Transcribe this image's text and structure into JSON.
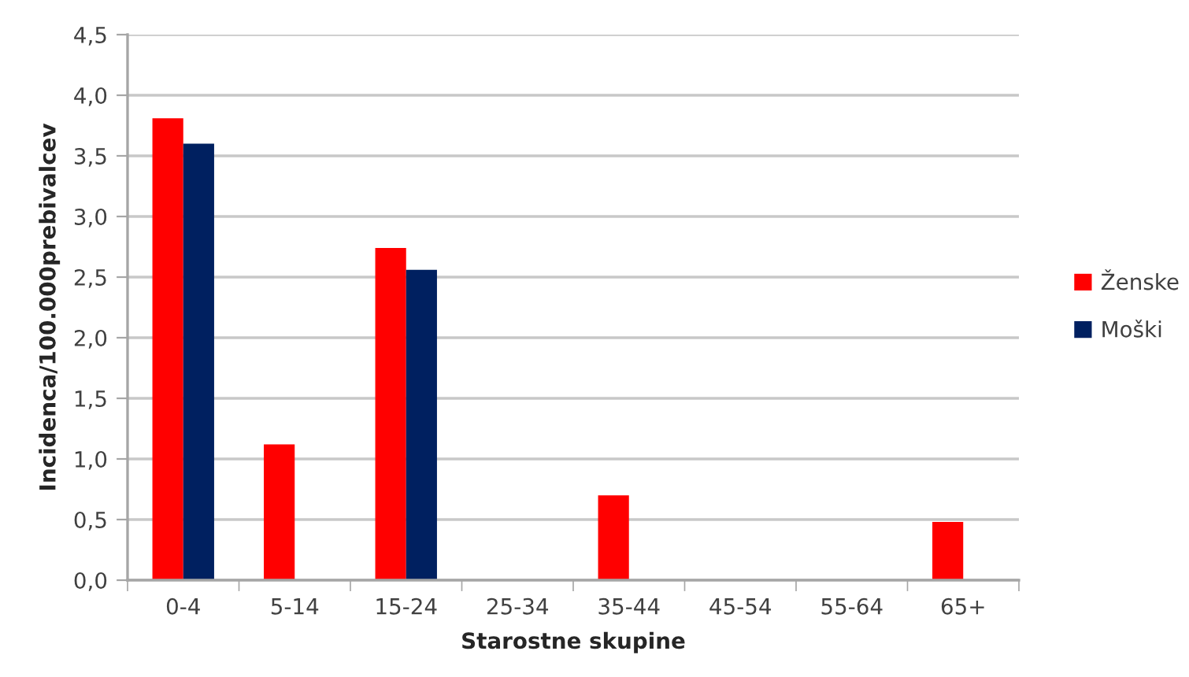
{
  "chart_data": {
    "type": "bar",
    "xlabel": "Starostne skupine",
    "ylabel": "Incidenca/100.000prebivalcev",
    "categories": [
      "0-4",
      "5-14",
      "15-24",
      "25-34",
      "35-44",
      "45-54",
      "55-64",
      "65+"
    ],
    "series": [
      {
        "name": "Ženske",
        "color": "#ff0000",
        "values": [
          3.81,
          1.12,
          2.74,
          null,
          0.7,
          null,
          null,
          0.48
        ]
      },
      {
        "name": "Moški",
        "color": "#002060",
        "values": [
          3.6,
          null,
          2.56,
          null,
          null,
          null,
          null,
          null
        ]
      }
    ],
    "ylim": [
      0,
      4.5
    ],
    "yticks": [
      {
        "value": 0,
        "label": "0,0"
      },
      {
        "value": 0.5,
        "label": "0,5"
      },
      {
        "value": 1,
        "label": "1,0"
      },
      {
        "value": 1.5,
        "label": "1,5"
      },
      {
        "value": 2,
        "label": "2,0"
      },
      {
        "value": 2.5,
        "label": "2,5"
      },
      {
        "value": 3,
        "label": "3,0"
      },
      {
        "value": 3.5,
        "label": "3,5"
      },
      {
        "value": 4,
        "label": "4,0"
      },
      {
        "value": 4.5,
        "label": "4,5"
      }
    ],
    "grid": "y",
    "legend": "right"
  }
}
